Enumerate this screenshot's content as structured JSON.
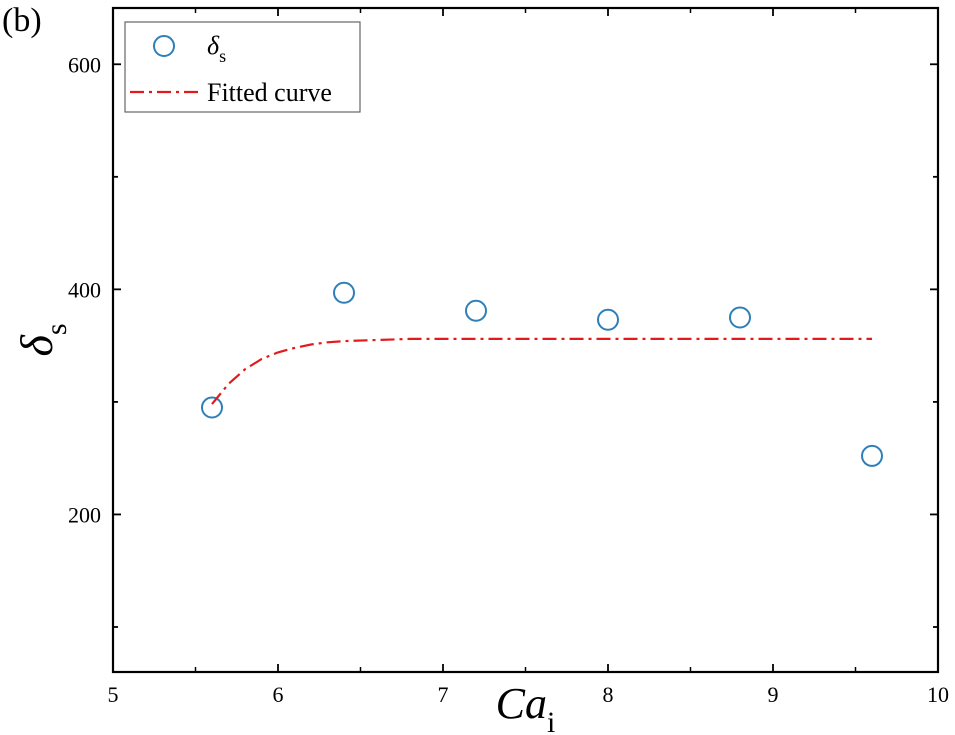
{
  "panel_label": "(b)",
  "chart_data": {
    "type": "scatter",
    "xlabel": {
      "main": "Ca",
      "sub": "i"
    },
    "ylabel": {
      "main": "δ",
      "sub": "s"
    },
    "xlim": [
      5,
      10
    ],
    "ylim": [
      60,
      650
    ],
    "x_ticks": [
      5,
      6,
      7,
      8,
      9,
      10
    ],
    "y_ticks": [
      200,
      400,
      600
    ],
    "grid": false,
    "legend_position": "top-left",
    "series": [
      {
        "name": {
          "main": "δ",
          "sub": "s"
        },
        "kind": "markers",
        "marker": "open-circle",
        "color": "#2e7fb8",
        "x": [
          5.6,
          6.4,
          7.2,
          8.0,
          8.8,
          9.6
        ],
        "y": [
          295,
          397,
          381,
          373,
          375,
          252
        ]
      },
      {
        "name": "Fitted curve",
        "kind": "line",
        "line_style": "dash-dot",
        "color": "#e31a1c",
        "x": [
          5.6,
          5.7,
          5.8,
          5.9,
          6.0,
          6.1,
          6.2,
          6.3,
          6.4,
          6.6,
          6.8,
          7.0,
          7.5,
          8.0,
          8.5,
          9.0,
          9.6
        ],
        "y": [
          298,
          316,
          329,
          338,
          344,
          348,
          351,
          353,
          354,
          355,
          356,
          356,
          356,
          356,
          356,
          356,
          356
        ]
      }
    ]
  }
}
